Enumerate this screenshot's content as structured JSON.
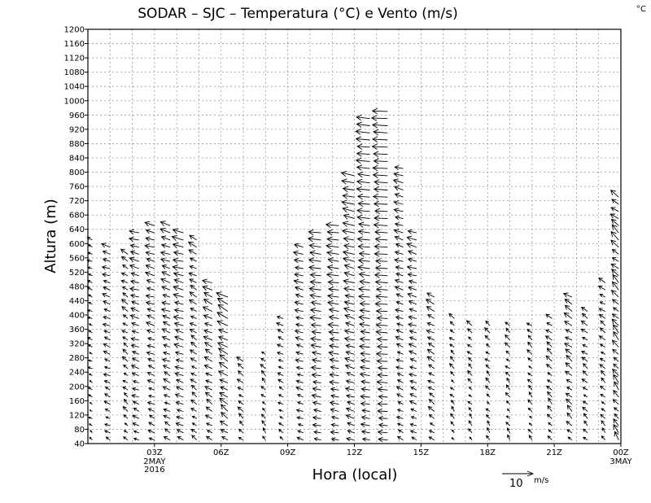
{
  "chart_data": {
    "type": "vector",
    "title": "SODAR – SJC – Temperatura (°C) e Vento (m/s)",
    "corner_unit": "°C",
    "xlabel": "Hora (local)",
    "ylabel": "Altura (m)",
    "yticks": [
      40,
      80,
      120,
      160,
      200,
      240,
      280,
      320,
      360,
      400,
      440,
      480,
      520,
      560,
      600,
      640,
      680,
      720,
      760,
      800,
      840,
      880,
      920,
      960,
      1000,
      1040,
      1080,
      1120,
      1160,
      1200
    ],
    "ylim": [
      40,
      1200
    ],
    "xlim": [
      0,
      24
    ],
    "xticks": [
      {
        "hour": 3,
        "label": "03Z",
        "sub": [
          "2MAY",
          "2016"
        ]
      },
      {
        "hour": 6,
        "label": "06Z",
        "sub": []
      },
      {
        "hour": 9,
        "label": "09Z",
        "sub": []
      },
      {
        "hour": 12,
        "label": "12Z",
        "sub": []
      },
      {
        "hour": 15,
        "label": "15Z",
        "sub": []
      },
      {
        "hour": 18,
        "label": "18Z",
        "sub": []
      },
      {
        "hour": 21,
        "label": "21Z",
        "sub": []
      },
      {
        "hour": 24,
        "label": "00Z",
        "sub": [
          "3MAY"
        ]
      }
    ],
    "grid": true,
    "reference_vector": {
      "speed": 10,
      "label": "10",
      "unit": "m/s"
    },
    "profiles": [
      {
        "t": 0.2,
        "top": 620,
        "u": -1.5,
        "v": 0.8
      },
      {
        "t": 1.0,
        "top": 600,
        "u": -2.5,
        "v": 1.0
      },
      {
        "t": 1.8,
        "top": 580,
        "u": -2.0,
        "v": 1.5
      },
      {
        "t": 2.3,
        "top": 640,
        "u": -3.0,
        "v": 1.0
      },
      {
        "t": 3.0,
        "top": 660,
        "u": -3.0,
        "v": 1.0
      },
      {
        "t": 3.7,
        "top": 660,
        "u": -3.0,
        "v": 1.2
      },
      {
        "t": 4.3,
        "top": 640,
        "u": -3.5,
        "v": 1.0
      },
      {
        "t": 4.9,
        "top": 620,
        "u": -2.5,
        "v": 1.5
      },
      {
        "t": 5.6,
        "top": 500,
        "u": -3.0,
        "v": 1.5
      },
      {
        "t": 6.3,
        "top": 460,
        "u": -3.5,
        "v": 2.0
      },
      {
        "t": 7.0,
        "top": 280,
        "u": -2.0,
        "v": 1.5
      },
      {
        "t": 8.0,
        "top": 300,
        "u": -1.5,
        "v": 1.5
      },
      {
        "t": 8.8,
        "top": 400,
        "u": -2.0,
        "v": 1.0
      },
      {
        "t": 9.7,
        "top": 600,
        "u": -3.0,
        "v": 0.8
      },
      {
        "t": 10.5,
        "top": 640,
        "u": -4.0,
        "v": 0.6
      },
      {
        "t": 11.3,
        "top": 660,
        "u": -4.0,
        "v": 0.6
      },
      {
        "t": 12.0,
        "top": 800,
        "u": -4.0,
        "v": 1.0
      },
      {
        "t": 12.7,
        "top": 960,
        "u": -4.5,
        "v": 0.5
      },
      {
        "t": 13.5,
        "top": 980,
        "u": -5.0,
        "v": 0.3
      },
      {
        "t": 14.2,
        "top": 820,
        "u": -3.0,
        "v": 1.0
      },
      {
        "t": 14.8,
        "top": 640,
        "u": -3.0,
        "v": 1.0
      },
      {
        "t": 15.6,
        "top": 460,
        "u": -2.5,
        "v": 1.5
      },
      {
        "t": 16.5,
        "top": 400,
        "u": -1.5,
        "v": 1.5
      },
      {
        "t": 17.3,
        "top": 380,
        "u": -1.5,
        "v": 1.5
      },
      {
        "t": 18.1,
        "top": 380,
        "u": -1.5,
        "v": 1.5
      },
      {
        "t": 19.0,
        "top": 380,
        "u": -1.5,
        "v": 1.5
      },
      {
        "t": 20.0,
        "top": 380,
        "u": -1.5,
        "v": 1.5
      },
      {
        "t": 20.9,
        "top": 400,
        "u": -2.0,
        "v": 1.8
      },
      {
        "t": 21.8,
        "top": 450,
        "u": -2.5,
        "v": 1.8
      },
      {
        "t": 22.5,
        "top": 420,
        "u": -2.0,
        "v": 1.5
      },
      {
        "t": 23.3,
        "top": 500,
        "u": -2.0,
        "v": 1.5
      },
      {
        "t": 23.9,
        "top": 740,
        "u": -2.5,
        "v": 2.5
      }
    ]
  }
}
